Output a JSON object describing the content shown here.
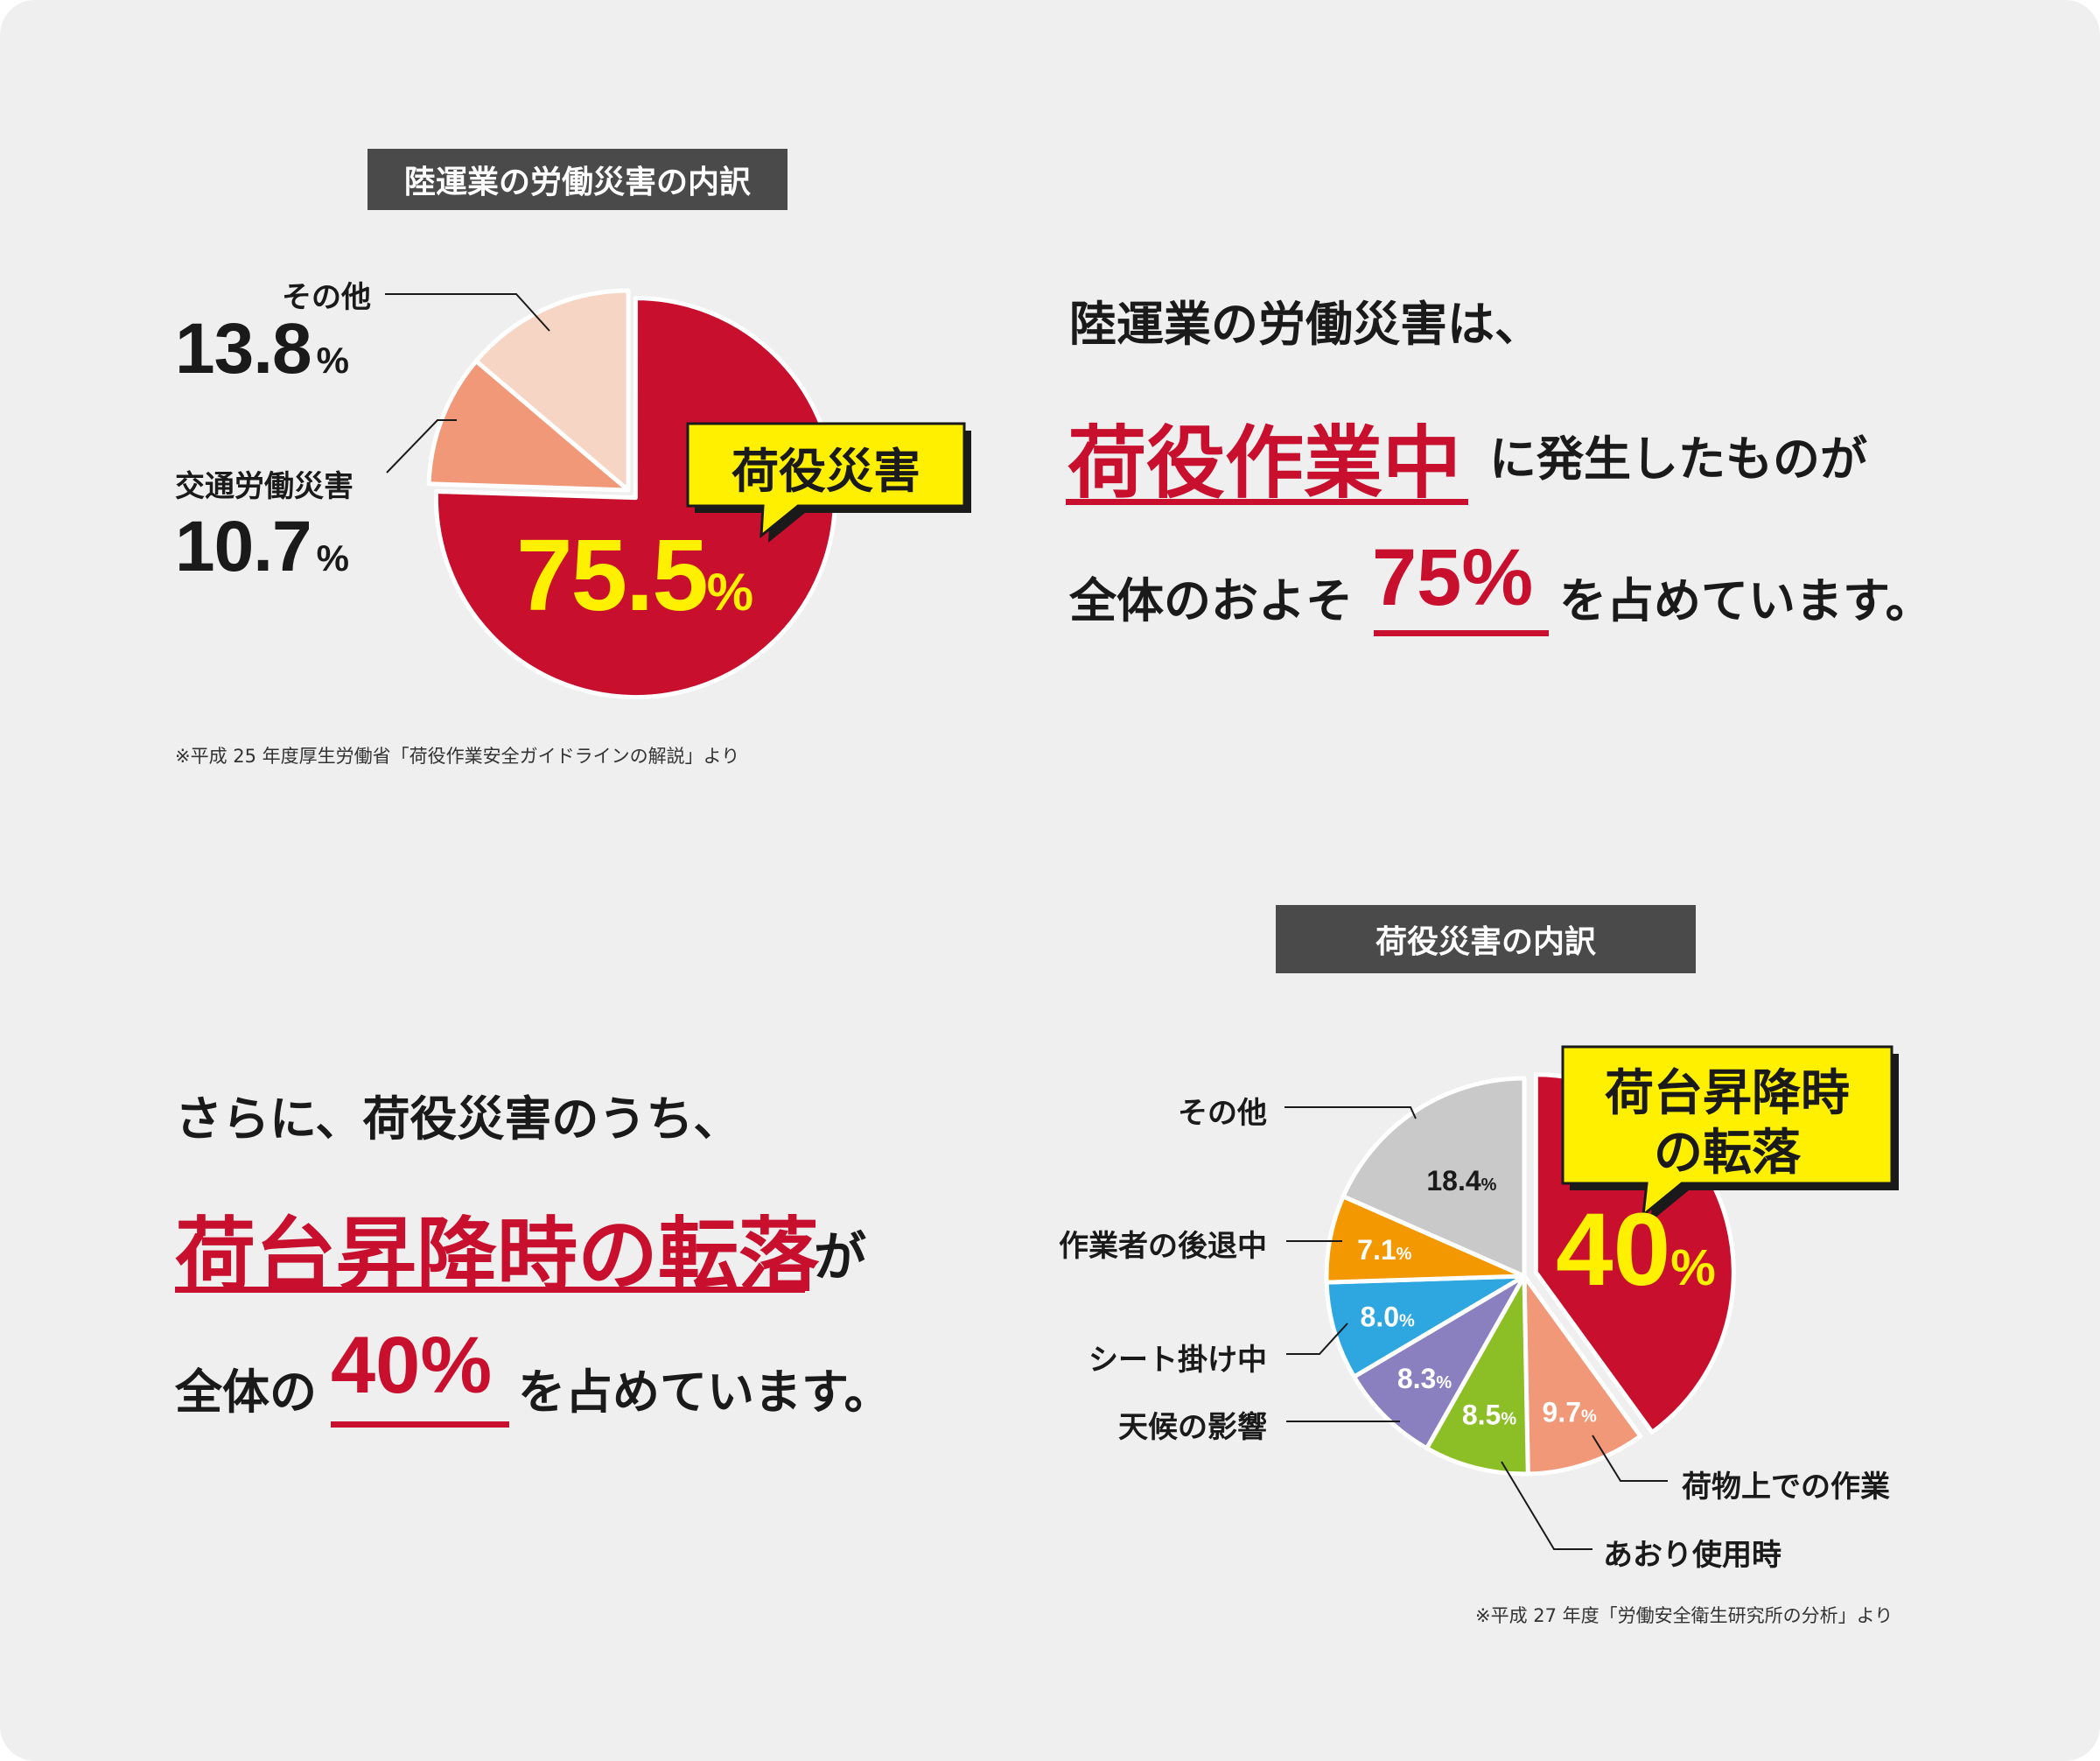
{
  "colors": {
    "background": "#efefef",
    "accent_red": "#c8102e",
    "callout_yellow": "#fff000",
    "title_bg": "#4a4a4a",
    "text_dark": "#1a1a1a"
  },
  "section1": {
    "chart_title": "陸運業の労働災害の内訳",
    "callout": "荷役災害",
    "main_value": "75.5",
    "percent_sign": "%",
    "labels": {
      "other_name": "その他",
      "other_value": "13.8",
      "traffic_name": "交通労働災害",
      "traffic_value": "10.7",
      "percent": "%"
    },
    "source_note": "※平成 25 年度厚生労働省「荷役作業安全ガイドラインの解説」より",
    "statement": {
      "line1": "陸運業の労働災害は、",
      "highlight": "荷役作業中",
      "line2_rest": "に発生したものが",
      "line3_pre": "全体のおよそ",
      "line3_value": "75%",
      "line3_post": "を占めています。"
    }
  },
  "section2": {
    "chart_title": "荷役災害の内訳",
    "callout_line1": "荷台昇降時",
    "callout_line2": "の転落",
    "main_value": "40",
    "percent_sign": "%",
    "labels": {
      "other": "その他",
      "backing": "作業者の後退中",
      "sheet": "シート掛け中",
      "weather": "天候の影響",
      "cargo": "荷物上での作業",
      "gate": "あおり使用時"
    },
    "source_note": "※平成 27 年度「労働安全衛生研究所の分析」より",
    "statement": {
      "line1": "さらに、荷役災害のうち、",
      "highlight": "荷台昇降時の転落",
      "highlight_suffix": "が",
      "line3_pre": "全体の",
      "line3_value": "40%",
      "line3_post": "を占めています。"
    }
  },
  "chart_data": [
    {
      "type": "pie",
      "title": "陸運業の労働災害の内訳",
      "unit": "%",
      "slices": [
        {
          "name": "荷役災害",
          "value": 75.5,
          "color": "#c8102e",
          "exploded": true
        },
        {
          "name": "交通労働災害",
          "value": 10.7,
          "color": "#f09878"
        },
        {
          "name": "その他",
          "value": 13.8,
          "color": "#f7d5c4"
        }
      ]
    },
    {
      "type": "pie",
      "title": "荷役災害の内訳",
      "unit": "%",
      "slices": [
        {
          "name": "荷台昇降時の転落",
          "value": 40,
          "color": "#c8102e",
          "exploded": true,
          "value_label": "40"
        },
        {
          "name": "荷物上での作業",
          "value": 9.7,
          "color": "#f09878",
          "value_label": "9.7"
        },
        {
          "name": "あおり使用時",
          "value": 8.5,
          "color": "#8cbe26",
          "value_label": "8.5"
        },
        {
          "name": "天候の影響",
          "value": 8.3,
          "color": "#8a7fbf",
          "value_label": "8.3"
        },
        {
          "name": "シート掛け中",
          "value": 8.0,
          "color": "#2ea7e0",
          "value_label": "8.0"
        },
        {
          "name": "作業者の後退中",
          "value": 7.1,
          "color": "#f39800",
          "value_label": "7.1"
        },
        {
          "name": "その他",
          "value": 18.4,
          "color": "#c9c9c9",
          "value_label": "18.4"
        }
      ]
    }
  ]
}
